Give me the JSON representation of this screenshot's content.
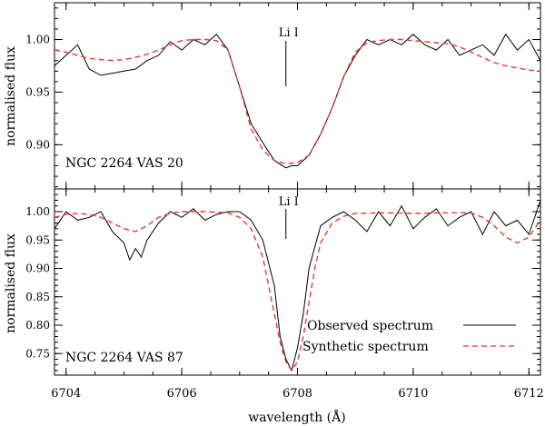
{
  "chart_data": [
    {
      "type": "line",
      "panel": "top",
      "annotation": "NGC 2264 VAS 20",
      "line_label": "Li I",
      "line_wavelength": 6707.8,
      "ylabel": "normalised flux",
      "xlim": [
        6703.8,
        6712.2
      ],
      "ylim": [
        0.858,
        1.035
      ],
      "yticks": [
        {
          "value": 0.9,
          "label": "0.90"
        },
        {
          "value": 0.95,
          "label": "0.95"
        },
        {
          "value": 1.0,
          "label": "1.00"
        }
      ],
      "series": [
        {
          "name": "Observed spectrum",
          "color": "#000000",
          "dash": "solid",
          "x": [
            6703.8,
            6704.0,
            6704.2,
            6704.4,
            6704.6,
            6704.8,
            6705.0,
            6705.2,
            6705.4,
            6705.6,
            6705.8,
            6706.0,
            6706.2,
            6706.4,
            6706.6,
            6706.8,
            6707.0,
            6707.2,
            6707.4,
            6707.6,
            6707.8,
            6707.9,
            6708.0,
            6708.2,
            6708.4,
            6708.6,
            6708.8,
            6709.0,
            6709.2,
            6709.4,
            6709.6,
            6709.8,
            6710.0,
            6710.2,
            6710.4,
            6710.6,
            6710.8,
            6711.0,
            6711.2,
            6711.4,
            6711.6,
            6711.8,
            6712.0,
            6712.2
          ],
          "y": [
            0.975,
            0.985,
            0.995,
            0.972,
            0.966,
            0.968,
            0.97,
            0.972,
            0.98,
            0.985,
            0.998,
            0.99,
            1.0,
            0.995,
            1.005,
            0.99,
            0.955,
            0.92,
            0.902,
            0.885,
            0.878,
            0.88,
            0.88,
            0.89,
            0.91,
            0.935,
            0.965,
            0.985,
            1.0,
            0.995,
            1.0,
            0.995,
            1.005,
            0.995,
            0.99,
            1.0,
            0.985,
            0.99,
            0.995,
            0.985,
            1.005,
            0.99,
            1.0,
            0.98
          ]
        },
        {
          "name": "Synthetic spectrum",
          "color": "#e53935",
          "dash": "dashed",
          "x": [
            6703.8,
            6704.0,
            6704.2,
            6704.4,
            6704.6,
            6704.8,
            6705.0,
            6705.2,
            6705.4,
            6705.6,
            6705.8,
            6706.0,
            6706.2,
            6706.4,
            6706.6,
            6706.8,
            6707.0,
            6707.2,
            6707.4,
            6707.6,
            6707.8,
            6708.0,
            6708.2,
            6708.4,
            6708.6,
            6708.8,
            6709.0,
            6709.2,
            6709.4,
            6709.6,
            6709.8,
            6710.0,
            6710.2,
            6710.4,
            6710.6,
            6710.8,
            6711.0,
            6711.2,
            6711.4,
            6711.6,
            6711.8,
            6712.0,
            6712.2
          ],
          "y": [
            0.99,
            0.988,
            0.985,
            0.982,
            0.981,
            0.98,
            0.981,
            0.983,
            0.986,
            0.99,
            0.995,
            0.999,
            1.0,
            1.0,
            0.999,
            0.99,
            0.955,
            0.915,
            0.895,
            0.885,
            0.882,
            0.883,
            0.89,
            0.91,
            0.935,
            0.965,
            0.988,
            0.997,
            0.999,
            1.0,
            1.0,
            0.999,
            0.998,
            0.997,
            0.996,
            0.993,
            0.988,
            0.983,
            0.978,
            0.975,
            0.973,
            0.971,
            0.97
          ]
        }
      ]
    },
    {
      "type": "line",
      "panel": "bottom",
      "annotation": "NGC 2264 VAS 87",
      "line_label": "Li I",
      "line_wavelength": 6707.8,
      "xlabel": "wavelength (Å)",
      "ylabel": "normalised flux",
      "xlim": [
        6703.8,
        6712.2
      ],
      "ylim": [
        0.712,
        1.04
      ],
      "xticks": [
        {
          "value": 6704,
          "label": "6704"
        },
        {
          "value": 6706,
          "label": "6706"
        },
        {
          "value": 6708,
          "label": "6708"
        },
        {
          "value": 6710,
          "label": "6710"
        },
        {
          "value": 6712,
          "label": "6712"
        }
      ],
      "yticks": [
        {
          "value": 0.75,
          "label": "0.75"
        },
        {
          "value": 0.8,
          "label": "0.80"
        },
        {
          "value": 0.85,
          "label": "0.85"
        },
        {
          "value": 0.9,
          "label": "0.90"
        },
        {
          "value": 0.95,
          "label": "0.95"
        },
        {
          "value": 1.0,
          "label": "1.00"
        }
      ],
      "legend": "bottom-right",
      "series": [
        {
          "name": "Observed spectrum",
          "color": "#000000",
          "dash": "solid",
          "x": [
            6703.8,
            6704.0,
            6704.2,
            6704.4,
            6704.6,
            6704.8,
            6705.0,
            6705.1,
            6705.2,
            6705.3,
            6705.4,
            6705.6,
            6705.8,
            6706.0,
            6706.2,
            6706.4,
            6706.6,
            6706.8,
            6707.0,
            6707.2,
            6707.4,
            6707.6,
            6707.7,
            6707.8,
            6707.9,
            6708.0,
            6708.1,
            6708.2,
            6708.4,
            6708.6,
            6708.8,
            6709.0,
            6709.2,
            6709.4,
            6709.6,
            6709.8,
            6710.0,
            6710.2,
            6710.4,
            6710.6,
            6710.8,
            6711.0,
            6711.2,
            6711.4,
            6711.6,
            6711.8,
            6712.0,
            6712.2
          ],
          "y": [
            0.97,
            1.0,
            0.985,
            0.99,
            1.0,
            0.965,
            0.945,
            0.915,
            0.935,
            0.92,
            0.95,
            0.98,
            1.0,
            0.99,
            1.005,
            0.985,
            0.995,
            1.0,
            1.0,
            0.985,
            0.95,
            0.87,
            0.78,
            0.74,
            0.72,
            0.76,
            0.82,
            0.9,
            0.975,
            0.99,
            1.0,
            0.985,
            0.965,
            1.0,
            0.975,
            1.01,
            0.97,
            0.99,
            1.005,
            0.975,
            0.99,
            1.0,
            0.96,
            1.0,
            0.975,
            0.985,
            0.96,
            1.02
          ]
        },
        {
          "name": "Synthetic spectrum",
          "color": "#e53935",
          "dash": "dashed",
          "x": [
            6703.8,
            6704.0,
            6704.2,
            6704.4,
            6704.6,
            6704.8,
            6705.0,
            6705.2,
            6705.4,
            6705.6,
            6705.8,
            6706.0,
            6706.4,
            6706.8,
            6707.0,
            6707.2,
            6707.4,
            6707.5,
            6707.6,
            6707.7,
            6707.8,
            6707.9,
            6708.0,
            6708.1,
            6708.2,
            6708.3,
            6708.4,
            6708.6,
            6708.8,
            6709.0,
            6709.5,
            6710.0,
            6710.5,
            6711.0,
            6711.2,
            6711.4,
            6711.6,
            6711.8,
            6712.0,
            6712.2
          ],
          "y": [
            0.99,
            0.995,
            0.997,
            0.995,
            0.99,
            0.98,
            0.97,
            0.965,
            0.975,
            0.99,
            0.997,
            1.0,
            1.0,
            0.998,
            0.99,
            0.97,
            0.92,
            0.87,
            0.82,
            0.77,
            0.735,
            0.72,
            0.735,
            0.78,
            0.84,
            0.9,
            0.945,
            0.98,
            0.992,
            0.997,
            0.998,
            0.997,
            0.998,
            0.998,
            0.99,
            0.975,
            0.955,
            0.945,
            0.955,
            0.985
          ]
        }
      ]
    }
  ]
}
